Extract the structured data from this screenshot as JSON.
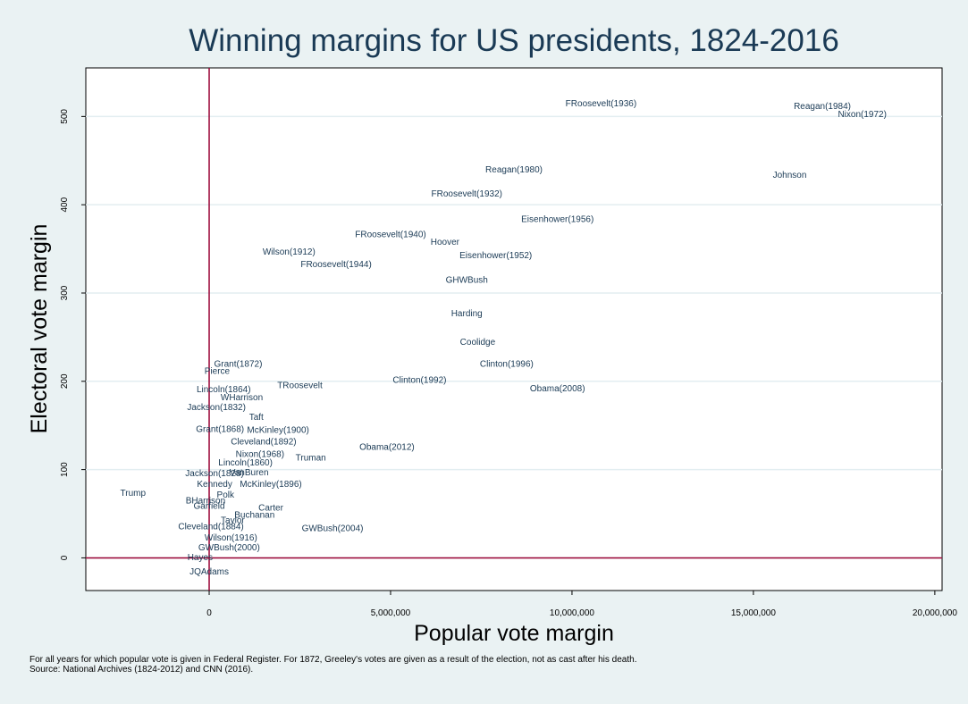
{
  "chart_data": {
    "type": "scatter",
    "title": "Winning margins for US presidents, 1824-2016",
    "xlabel": "Popular vote margin",
    "ylabel": "Electoral vote margin",
    "xlim": [
      -3400000,
      20200000
    ],
    "ylim": [
      -37,
      555
    ],
    "x_ticks": [
      0,
      5000000,
      10000000,
      15000000,
      20000000
    ],
    "x_tick_labels": [
      "0",
      "5,000,000",
      "10,000,000",
      "15,000,000",
      "20,000,000"
    ],
    "y_ticks": [
      0,
      100,
      200,
      300,
      400,
      500
    ],
    "y_tick_labels": [
      "0",
      "100",
      "200",
      "300",
      "400",
      "500"
    ],
    "grid": "horizontal",
    "reference_lines": {
      "x": 0,
      "y": 0
    },
    "colors": {
      "plot_bg": "#ffffff",
      "page_bg": "#eaf2f3",
      "grid": "#e3eef1",
      "reference": "#990033",
      "label": "#1a3a55"
    },
    "points": [
      {
        "label": "FRoosevelt(1936)",
        "x": 10800000,
        "y": 515
      },
      {
        "label": "Reagan(1984)",
        "x": 16900000,
        "y": 512
      },
      {
        "label": "Nixon(1972)",
        "x": 18000000,
        "y": 503
      },
      {
        "label": "Reagan(1980)",
        "x": 8400000,
        "y": 440
      },
      {
        "label": "Johnson",
        "x": 16000000,
        "y": 434
      },
      {
        "label": "FRoosevelt(1932)",
        "x": 7100000,
        "y": 413
      },
      {
        "label": "Eisenhower(1956)",
        "x": 9600000,
        "y": 384
      },
      {
        "label": "FRoosevelt(1940)",
        "x": 5000000,
        "y": 367
      },
      {
        "label": "Hoover",
        "x": 6500000,
        "y": 358
      },
      {
        "label": "Wilson(1912)",
        "x": 2200000,
        "y": 347
      },
      {
        "label": "Eisenhower(1952)",
        "x": 7900000,
        "y": 343
      },
      {
        "label": "FRoosevelt(1944)",
        "x": 3500000,
        "y": 333
      },
      {
        "label": "GHWBush",
        "x": 7100000,
        "y": 315
      },
      {
        "label": "Harding",
        "x": 7100000,
        "y": 277
      },
      {
        "label": "Coolidge",
        "x": 7400000,
        "y": 245
      },
      {
        "label": "Clinton(1996)",
        "x": 8200000,
        "y": 220
      },
      {
        "label": "Grant(1872)",
        "x": 800000,
        "y": 220
      },
      {
        "label": "Pierce",
        "x": 220000,
        "y": 212
      },
      {
        "label": "Clinton(1992)",
        "x": 5800000,
        "y": 202
      },
      {
        "label": "TRoosevelt",
        "x": 2500000,
        "y": 196
      },
      {
        "label": "Obama(2008)",
        "x": 9600000,
        "y": 192
      },
      {
        "label": "Lincoln(1864)",
        "x": 400000,
        "y": 191
      },
      {
        "label": "WHarrison",
        "x": 900000,
        "y": 182
      },
      {
        "label": "Jackson(1832)",
        "x": 200000,
        "y": 171
      },
      {
        "label": "Taft",
        "x": 1300000,
        "y": 160
      },
      {
        "label": "Grant(1868)",
        "x": 300000,
        "y": 146
      },
      {
        "label": "McKinley(1900)",
        "x": 1900000,
        "y": 145
      },
      {
        "label": "Cleveland(1892)",
        "x": 1500000,
        "y": 132
      },
      {
        "label": "Obama(2012)",
        "x": 4900000,
        "y": 126
      },
      {
        "label": "Nixon(1968)",
        "x": 1400000,
        "y": 118
      },
      {
        "label": "Truman",
        "x": 2800000,
        "y": 114
      },
      {
        "label": "Lincoln(1860)",
        "x": 1000000,
        "y": 108
      },
      {
        "label": "Jackson(1828)",
        "x": 150000,
        "y": 96
      },
      {
        "label": "VanBuren",
        "x": 1100000,
        "y": 97
      },
      {
        "label": "Kennedy",
        "x": 150000,
        "y": 84
      },
      {
        "label": "McKinley(1896)",
        "x": 1700000,
        "y": 84
      },
      {
        "label": "Trump",
        "x": -2100000,
        "y": 74
      },
      {
        "label": "Polk",
        "x": 450000,
        "y": 72
      },
      {
        "label": "BHarrison",
        "x": -100000,
        "y": 65
      },
      {
        "label": "Garfield",
        "x": 0,
        "y": 59
      },
      {
        "label": "Carter",
        "x": 1700000,
        "y": 57
      },
      {
        "label": "Buchanan",
        "x": 1250000,
        "y": 49
      },
      {
        "label": "Taylor",
        "x": 650000,
        "y": 43
      },
      {
        "label": "Cleveland(1884)",
        "x": 50000,
        "y": 36
      },
      {
        "label": "GWBush(2004)",
        "x": 3400000,
        "y": 34
      },
      {
        "label": "Wilson(1916)",
        "x": 600000,
        "y": 23
      },
      {
        "label": "GWBush(2000)",
        "x": 550000,
        "y": 12
      },
      {
        "label": "Hayes",
        "x": -250000,
        "y": 1
      },
      {
        "label": "JQAdams",
        "x": 0,
        "y": -15
      }
    ]
  },
  "footnote": {
    "line1": "For all years for which popular vote is given in Federal Register. For 1872, Greeley's votes are given as a result of the election, not as cast after his death.",
    "line2": "Source: National Archives (1824-2012) and CNN (2016)."
  }
}
